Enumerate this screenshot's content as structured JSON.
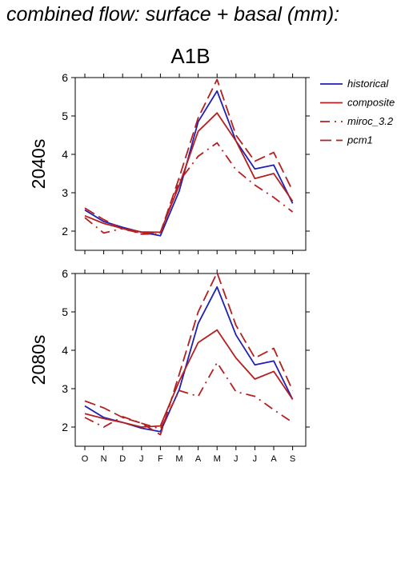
{
  "title": "combined flow: surface + basal (mm):",
  "scenario": "A1B",
  "chart_data": {
    "type": "line",
    "categories": [
      "O",
      "N",
      "D",
      "J",
      "F",
      "M",
      "A",
      "M",
      "J",
      "J",
      "A",
      "S"
    ],
    "legend": [
      {
        "name": "historical",
        "color": "#1f1fb4",
        "dash": "solid"
      },
      {
        "name": "composite",
        "color": "#b42020",
        "dash": "solid"
      },
      {
        "name": "miroc_3.2",
        "color": "#b42020",
        "dash": "dashdot"
      },
      {
        "name": "pcm1",
        "color": "#b42020",
        "dash": "dashed"
      }
    ],
    "legend_position": "top-right, outside plot",
    "panels": [
      {
        "label": "2040s",
        "ylim": [
          1.5,
          6
        ],
        "yticks": [
          2,
          3,
          4,
          5,
          6
        ],
        "series": [
          {
            "name": "historical",
            "values": [
              2.55,
              2.25,
              2.1,
              1.97,
              1.88,
              3.05,
              4.85,
              5.65,
              4.35,
              3.62,
              3.72,
              2.72
            ]
          },
          {
            "name": "composite",
            "values": [
              2.4,
              2.2,
              2.07,
              1.98,
              1.97,
              3.2,
              4.6,
              5.08,
              4.35,
              3.37,
              3.5,
              2.78
            ]
          },
          {
            "name": "miroc_3.2",
            "values": [
              2.35,
              1.95,
              2.07,
              1.92,
              1.93,
              3.3,
              3.95,
              4.3,
              3.6,
              3.2,
              2.88,
              2.5
            ]
          },
          {
            "name": "pcm1",
            "values": [
              2.6,
              2.3,
              2.05,
              1.95,
              1.96,
              3.4,
              4.95,
              5.95,
              4.5,
              3.82,
              4.05,
              3.05
            ]
          }
        ]
      },
      {
        "label": "2080s",
        "ylim": [
          1.5,
          6
        ],
        "yticks": [
          2,
          3,
          4,
          5,
          6
        ],
        "series": [
          {
            "name": "historical",
            "values": [
              2.55,
              2.25,
              2.12,
              1.97,
              1.88,
              2.98,
              4.7,
              5.65,
              4.4,
              3.62,
              3.72,
              2.72
            ]
          },
          {
            "name": "composite",
            "values": [
              2.35,
              2.22,
              2.12,
              2.0,
              2.03,
              3.2,
              4.2,
              4.53,
              3.8,
              3.25,
              3.45,
              2.72
            ]
          },
          {
            "name": "miroc_3.2",
            "values": [
              2.25,
              2.0,
              2.27,
              2.1,
              1.95,
              2.95,
              2.8,
              3.68,
              2.92,
              2.8,
              2.45,
              2.12
            ]
          },
          {
            "name": "pcm1",
            "values": [
              2.68,
              2.5,
              2.25,
              2.1,
              1.8,
              3.38,
              5.0,
              6.02,
              4.65,
              3.8,
              4.05,
              2.95
            ]
          }
        ]
      }
    ]
  }
}
